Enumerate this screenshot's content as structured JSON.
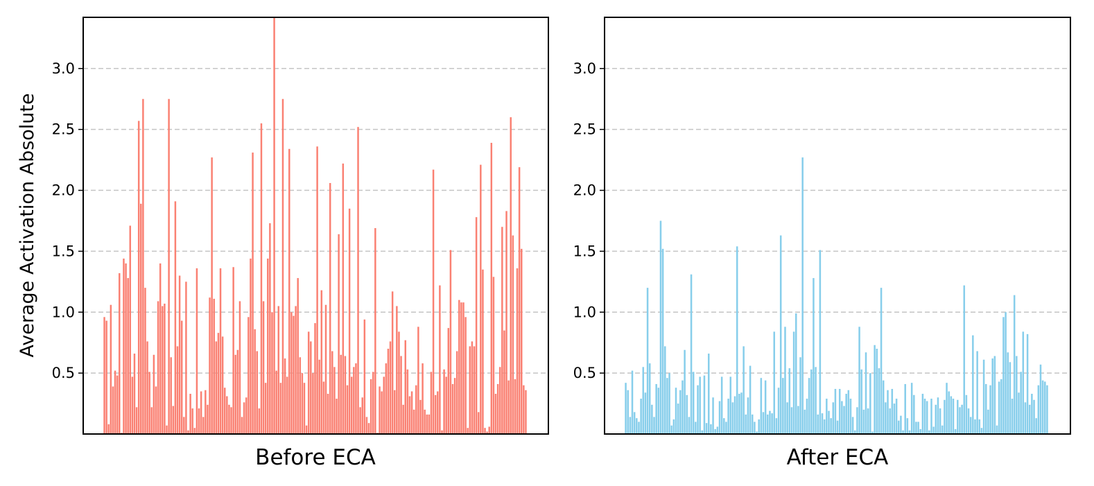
{
  "chart_data": [
    {
      "type": "bar",
      "xlabel": "Before ECA",
      "ylabel": "Average Activation Absolute",
      "ylim": [
        0,
        3.42
      ],
      "yticks": [
        "0.5",
        "1.0",
        "1.5",
        "2.0",
        "2.5",
        "3.0"
      ],
      "grid": "horizontal dashed",
      "color": "#fa8072",
      "values": [
        0.96,
        0.93,
        0.08,
        1.06,
        0.39,
        0.52,
        0.48,
        1.32,
        0.01,
        1.44,
        1.4,
        1.28,
        1.71,
        0.47,
        0.66,
        0.22,
        2.57,
        1.89,
        2.75,
        1.2,
        0.76,
        0.51,
        0.22,
        0.65,
        0.39,
        1.09,
        1.4,
        1.05,
        1.07,
        0.07,
        2.75,
        0.63,
        0.23,
        1.91,
        0.72,
        1.3,
        0.93,
        0.14,
        1.25,
        0.03,
        0.33,
        0.21,
        0.05,
        1.36,
        0.21,
        0.35,
        0.14,
        0.36,
        0.24,
        1.12,
        2.27,
        1.11,
        0.76,
        0.83,
        1.36,
        0.8,
        0.38,
        0.31,
        0.24,
        0.22,
        1.37,
        0.65,
        0.69,
        1.09,
        0.14,
        0.26,
        0.3,
        0.96,
        1.44,
        2.31,
        0.86,
        0.68,
        0.21,
        2.55,
        1.09,
        0.42,
        1.44,
        1.73,
        1.0,
        3.42,
        0.52,
        1.05,
        0.42,
        2.75,
        0.62,
        0.47,
        2.34,
        1.0,
        0.97,
        1.05,
        1.28,
        0.63,
        0.5,
        0.42,
        0.07,
        0.84,
        0.76,
        0.5,
        0.91,
        2.36,
        0.61,
        1.18,
        0.43,
        1.06,
        0.33,
        2.06,
        0.68,
        0.55,
        0.29,
        1.64,
        0.65,
        2.22,
        0.64,
        0.4,
        1.85,
        0.47,
        0.55,
        0.58,
        2.52,
        0.22,
        0.3,
        0.94,
        0.14,
        0.09,
        0.45,
        0.51,
        1.69,
        0.01,
        0.39,
        0.35,
        0.47,
        0.58,
        0.7,
        0.76,
        1.17,
        0.36,
        1.05,
        0.84,
        0.64,
        0.24,
        0.77,
        0.53,
        0.31,
        0.35,
        0.2,
        0.4,
        0.88,
        0.28,
        0.58,
        0.2,
        0.16,
        0.16,
        0.51,
        2.17,
        0.32,
        0.35,
        1.22,
        0.03,
        0.53,
        0.47,
        0.87,
        1.51,
        0.41,
        0.46,
        0.68,
        1.1,
        1.08,
        1.08,
        0.96,
        0.05,
        0.72,
        0.76,
        0.72,
        1.78,
        0.18,
        2.21,
        1.35,
        0.05,
        0.02,
        0.06,
        2.39,
        1.29,
        0.33,
        0.41,
        0.55,
        1.7,
        0.85,
        1.83,
        0.44,
        2.6,
        1.63,
        0.45,
        1.36,
        2.19,
        1.52,
        0.4,
        0.36
      ]
    },
    {
      "type": "bar",
      "xlabel": "After ECA",
      "ylabel": "",
      "ylim": [
        0,
        3.42
      ],
      "yticks": [
        "0.5",
        "1.0",
        "1.5",
        "2.0",
        "2.5",
        "3.0"
      ],
      "grid": "horizontal dashed",
      "color": "#87ceeb",
      "values": [
        0.42,
        0.36,
        0.14,
        0.52,
        0.18,
        0.13,
        0.1,
        0.29,
        0.55,
        0.34,
        1.2,
        0.58,
        0.24,
        0.14,
        0.41,
        0.38,
        1.75,
        1.52,
        0.72,
        0.46,
        0.5,
        0.07,
        0.12,
        0.38,
        0.25,
        0.36,
        0.44,
        0.69,
        0.32,
        0.14,
        1.31,
        0.51,
        0.1,
        0.4,
        0.47,
        0.03,
        0.48,
        0.09,
        0.66,
        0.08,
        0.3,
        0.04,
        0.06,
        0.27,
        0.47,
        0.13,
        0.1,
        0.29,
        0.47,
        0.26,
        0.31,
        1.54,
        0.33,
        0.34,
        0.72,
        0.16,
        0.3,
        0.56,
        0.16,
        0.1,
        0.02,
        0.12,
        0.46,
        0.18,
        0.44,
        0.16,
        0.19,
        0.17,
        0.84,
        0.13,
        0.38,
        1.63,
        0.46,
        0.88,
        0.26,
        0.54,
        0.22,
        0.84,
        0.99,
        0.23,
        0.63,
        2.27,
        0.2,
        0.29,
        0.46,
        0.53,
        1.28,
        0.55,
        0.16,
        1.51,
        0.17,
        0.12,
        0.29,
        0.19,
        0.13,
        0.26,
        0.37,
        0.11,
        0.37,
        0.27,
        0.23,
        0.33,
        0.36,
        0.29,
        0.14,
        0.03,
        0.22,
        0.88,
        0.53,
        0.2,
        0.67,
        0.21,
        0.5,
        0.02,
        0.73,
        0.7,
        0.54,
        1.2,
        0.44,
        0.26,
        0.36,
        0.21,
        0.37,
        0.25,
        0.29,
        0.11,
        0.15,
        0.03,
        0.41,
        0.13,
        0.03,
        0.42,
        0.32,
        0.1,
        0.1,
        0.04,
        0.33,
        0.29,
        0.27,
        0.03,
        0.29,
        0.06,
        0.24,
        0.3,
        0.21,
        0.07,
        0.28,
        0.42,
        0.35,
        0.31,
        0.29,
        0.04,
        0.28,
        0.22,
        0.24,
        1.22,
        0.32,
        0.21,
        0.14,
        0.81,
        0.12,
        0.68,
        0.12,
        0.05,
        0.61,
        0.41,
        0.2,
        0.4,
        0.62,
        0.64,
        0.07,
        0.43,
        0.45,
        0.96,
        1.0,
        0.67,
        0.59,
        0.29,
        1.14,
        0.64,
        0.34,
        0.51,
        0.84,
        0.26,
        0.82,
        0.24,
        0.33,
        0.28,
        0.13,
        0.4,
        0.57,
        0.44,
        0.43,
        0.4
      ]
    }
  ]
}
